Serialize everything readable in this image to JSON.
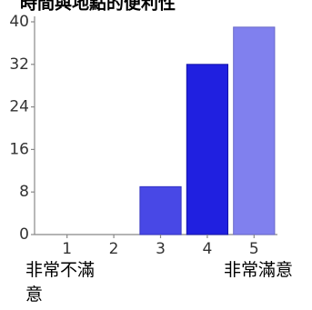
{
  "chart_data": {
    "type": "bar",
    "title": "時間與地點的便利性",
    "categories": [
      "1",
      "2",
      "3",
      "4",
      "5"
    ],
    "values": [
      0,
      0,
      9,
      32,
      39
    ],
    "ylim": [
      0,
      40
    ],
    "yticks": [
      "0",
      "8",
      "16",
      "24",
      "32",
      "40"
    ],
    "bar_colors": [
      "#4242e6",
      "#4242e6",
      "#4848e6",
      "#2020e0",
      "#8080ee"
    ],
    "bar_edge_colors": [
      "#3030c0",
      "#3030c0",
      "#3434c4",
      "#1414a8",
      "#6868c8"
    ],
    "grid": false,
    "scale_low_label": "非常不滿意",
    "scale_high_label": "非常滿意"
  }
}
